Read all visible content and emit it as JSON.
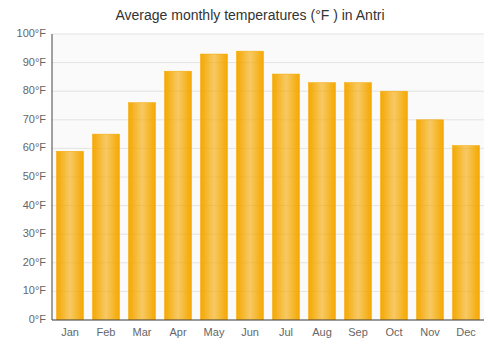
{
  "chart_data": {
    "type": "bar",
    "title": "Average monthly temperatures (°F ) in Antri",
    "categories": [
      "Jan",
      "Feb",
      "Mar",
      "Apr",
      "May",
      "Jun",
      "Jul",
      "Aug",
      "Sep",
      "Oct",
      "Nov",
      "Dec"
    ],
    "values": [
      59,
      65,
      76,
      87,
      93,
      94,
      86,
      83,
      83,
      80,
      70,
      61
    ],
    "color": "#F5A800",
    "ylim": [
      0,
      100
    ],
    "yticks": [
      {
        "value": 0,
        "label": "0°F"
      },
      {
        "value": 10,
        "label": "10°F"
      },
      {
        "value": 20,
        "label": "20°F"
      },
      {
        "value": 30,
        "label": "30°F"
      },
      {
        "value": 40,
        "label": "40°F"
      },
      {
        "value": 50,
        "label": "50°F"
      },
      {
        "value": 60,
        "label": "60°F"
      },
      {
        "value": 70,
        "label": "70°F"
      },
      {
        "value": 80,
        "label": "80°F"
      },
      {
        "value": 90,
        "label": "90°F"
      },
      {
        "value": 100,
        "label": "100°F"
      }
    ],
    "grid": true
  }
}
